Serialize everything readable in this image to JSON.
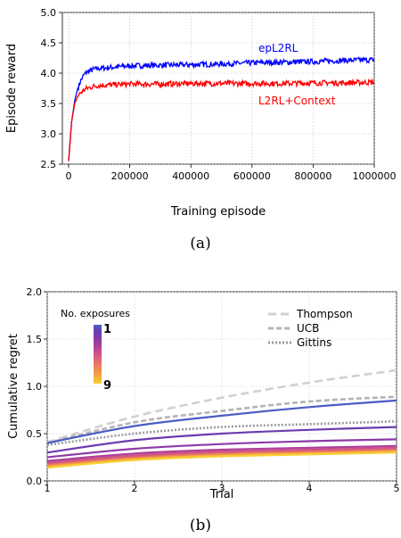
{
  "chart_data": [
    {
      "type": "line",
      "caption": "(a)",
      "xlabel": "Training episode",
      "ylabel": "Episode reward",
      "xlim": [
        0,
        1000000
      ],
      "ylim": [
        2.5,
        5.0
      ],
      "x_ticks": [
        0,
        200000,
        400000,
        600000,
        800000,
        1000000
      ],
      "y_ticks": [
        2.5,
        3.0,
        3.5,
        4.0,
        4.5,
        5.0
      ],
      "grid": true,
      "series": [
        {
          "name": "epL2RL",
          "color": "#0000ff",
          "label_placement": "upper-right",
          "x": [
            0,
            10000,
            20000,
            30000,
            40000,
            50000,
            60000,
            80000,
            100000,
            150000,
            200000,
            300000,
            400000,
            500000,
            600000,
            700000,
            800000,
            900000,
            1000000
          ],
          "y": [
            2.55,
            3.2,
            3.55,
            3.75,
            3.88,
            3.97,
            4.02,
            4.06,
            4.08,
            4.1,
            4.12,
            4.13,
            4.14,
            4.15,
            4.17,
            4.18,
            4.19,
            4.21,
            4.22
          ]
        },
        {
          "name": "L2RL+Context",
          "color": "#ff0000",
          "label_placement": "right",
          "x": [
            0,
            10000,
            20000,
            30000,
            40000,
            50000,
            60000,
            80000,
            100000,
            150000,
            200000,
            300000,
            400000,
            500000,
            600000,
            700000,
            800000,
            900000,
            1000000
          ],
          "y": [
            2.55,
            3.2,
            3.5,
            3.62,
            3.68,
            3.72,
            3.75,
            3.78,
            3.8,
            3.81,
            3.82,
            3.82,
            3.83,
            3.83,
            3.83,
            3.83,
            3.84,
            3.84,
            3.85
          ]
        }
      ]
    },
    {
      "type": "line",
      "caption": "(b)",
      "xlabel": "Trial",
      "ylabel": "Cumulative regret",
      "xlim": [
        1,
        5
      ],
      "ylim": [
        0.0,
        2.0
      ],
      "x_ticks": [
        1,
        2,
        3,
        4,
        5
      ],
      "y_ticks": [
        0.0,
        0.5,
        1.0,
        1.5,
        2.0
      ],
      "grid": true,
      "x": [
        1,
        2,
        3,
        4,
        5
      ],
      "baselines": [
        {
          "name": "Thompson",
          "color": "#d0d0d0",
          "style": "dashed",
          "values": [
            0.41,
            0.68,
            0.88,
            1.04,
            1.17
          ]
        },
        {
          "name": "UCB",
          "color": "#b4b4b4",
          "style": "dashed",
          "values": [
            0.4,
            0.62,
            0.74,
            0.84,
            0.89
          ]
        },
        {
          "name": "Gittins",
          "color": "#9a9a9a",
          "style": "dotted",
          "values": [
            0.38,
            0.5,
            0.57,
            0.6,
            0.63
          ]
        }
      ],
      "exposures": {
        "title": "No. exposures",
        "min_label": "1",
        "max_label": "9",
        "colormap": [
          "#4c5cc4",
          "#6a3cb0",
          "#8c3aa6",
          "#b0409a",
          "#cf5586",
          "#e26e6e",
          "#ef8a52",
          "#f6aa3c",
          "#f7cf30"
        ],
        "series": [
          {
            "exposure": 1,
            "values": [
              0.4,
              0.58,
              0.69,
              0.78,
              0.85
            ]
          },
          {
            "exposure": 2,
            "values": [
              0.3,
              0.43,
              0.5,
              0.54,
              0.57
            ]
          },
          {
            "exposure": 3,
            "values": [
              0.25,
              0.34,
              0.39,
              0.42,
              0.44
            ]
          },
          {
            "exposure": 4,
            "values": [
              0.21,
              0.29,
              0.33,
              0.35,
              0.37
            ]
          },
          {
            "exposure": 5,
            "values": [
              0.19,
              0.27,
              0.31,
              0.33,
              0.35
            ]
          },
          {
            "exposure": 6,
            "values": [
              0.18,
              0.26,
              0.3,
              0.32,
              0.34
            ]
          },
          {
            "exposure": 7,
            "values": [
              0.17,
              0.25,
              0.29,
              0.31,
              0.33
            ]
          },
          {
            "exposure": 8,
            "values": [
              0.16,
              0.24,
              0.28,
              0.3,
              0.32
            ]
          },
          {
            "exposure": 9,
            "values": [
              0.14,
              0.22,
              0.26,
              0.28,
              0.3
            ]
          }
        ]
      }
    }
  ]
}
